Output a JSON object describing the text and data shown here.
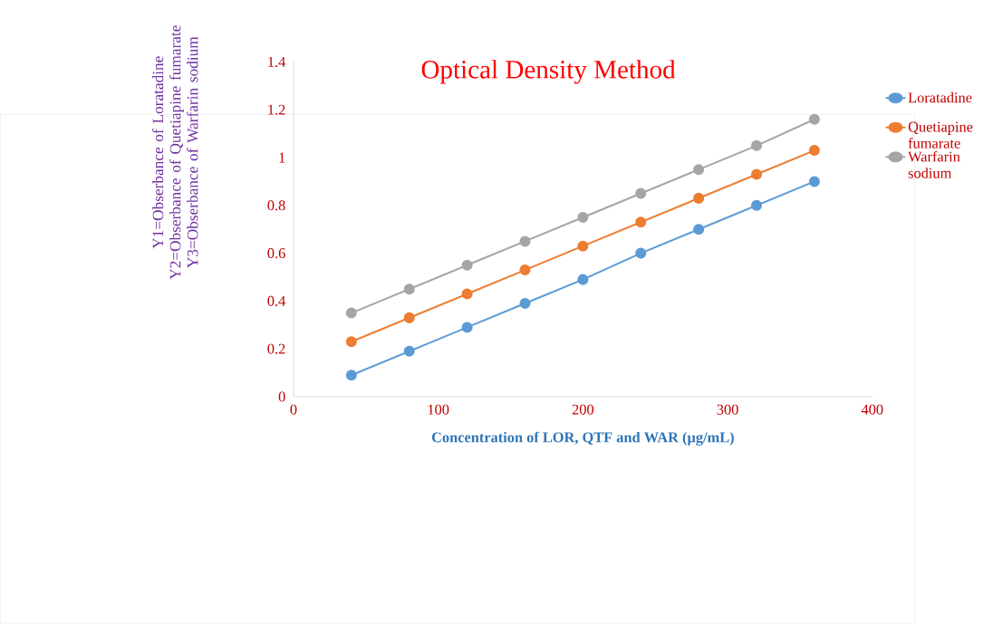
{
  "chart_data": {
    "type": "line",
    "title": "Optical Density Method",
    "xlabel": "Concentration of LOR, QTF and WAR (µg/mL)",
    "ylabel": "Y1=Obserbance of  Loratadine Y2=Obserbance of Quetiapine fumarate Y3=Obserbance of Warfarin sodium",
    "x": [
      40,
      80,
      120,
      160,
      200,
      240,
      280,
      320,
      360
    ],
    "series": [
      {
        "name": "Loratadine",
        "color": "#5b9bd5",
        "values": [
          0.09,
          0.19,
          0.29,
          0.39,
          0.49,
          0.6,
          0.7,
          0.8,
          0.9
        ]
      },
      {
        "name": "Quetiapine fumarate",
        "color": "#ed7d31",
        "values": [
          0.23,
          0.33,
          0.43,
          0.53,
          0.63,
          0.73,
          0.83,
          0.93,
          1.03
        ]
      },
      {
        "name": "Warfarin sodium",
        "color": "#a5a5a5",
        "values": [
          0.35,
          0.45,
          0.55,
          0.65,
          0.75,
          0.85,
          0.95,
          1.05,
          1.16
        ]
      }
    ],
    "xlim": [
      0,
      400
    ],
    "xticks": [
      0,
      100,
      200,
      300,
      400
    ],
    "ylim": [
      0,
      1.4
    ],
    "yticks": [
      0,
      0.2,
      0.4,
      0.6,
      0.8,
      1,
      1.2,
      1.4
    ],
    "legend": "right",
    "marker": "circle",
    "line_style": "solid"
  }
}
